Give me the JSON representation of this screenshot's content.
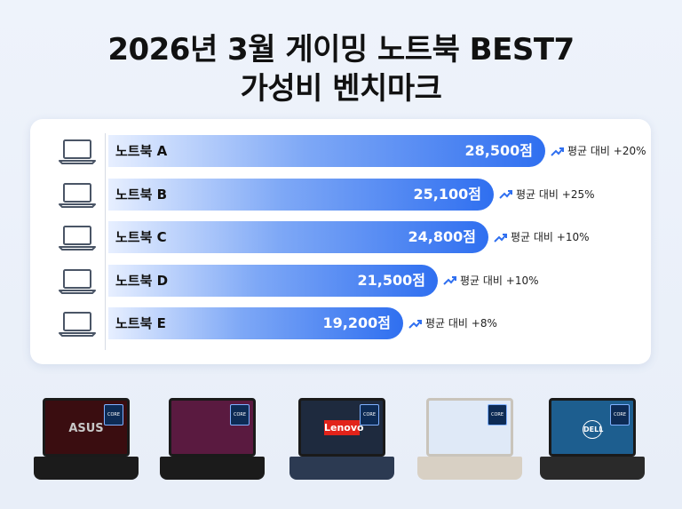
{
  "header": {
    "title_line1": "2026년 3월 게이밍 노트북 BEST7",
    "title_line2": "가성비 벤치마크"
  },
  "chart_data": {
    "type": "bar",
    "orientation": "horizontal",
    "title": "2026년 3월 게이밍 노트북 BEST7 가성비 벤치마크",
    "categories": [
      "노트북 A",
      "노트북 B",
      "노트북 C",
      "노트북 D",
      "노트북 E"
    ],
    "values": [
      28500,
      25100,
      24800,
      21500,
      19200
    ],
    "value_labels": [
      "28,500점",
      "25,100점",
      "24,800점",
      "21,500점",
      "19,200점"
    ],
    "annotations": [
      "평균 대비 +20%",
      "평균 대비 +25%",
      "평균 대비 +10%",
      "평균 대비 +10%",
      "평균 대비 +8%"
    ],
    "xlim": [
      0,
      33000
    ],
    "grid": false,
    "colors": {
      "bar_start": "#e7efff",
      "bar_end": "#2f6ff0",
      "trend_icon": "#2f6ff0"
    }
  },
  "icons": {
    "row_icon": "laptop-icon",
    "trend_icon": "trend-up-icon"
  },
  "laptops": [
    {
      "brand": "ASUS",
      "sticker": "CORE",
      "screen_color": "#3a0d10"
    },
    {
      "brand": "",
      "sticker": "CORE",
      "screen_color": "#5a1a40"
    },
    {
      "brand": "Lenovo",
      "sticker": "CORE",
      "screen_color": "#1e2a3e"
    },
    {
      "brand": "",
      "sticker": "CORE",
      "screen_color": "#dfe9f7"
    },
    {
      "brand": "DELL",
      "sticker": "CORE",
      "screen_color": "#1d5e8f"
    }
  ]
}
